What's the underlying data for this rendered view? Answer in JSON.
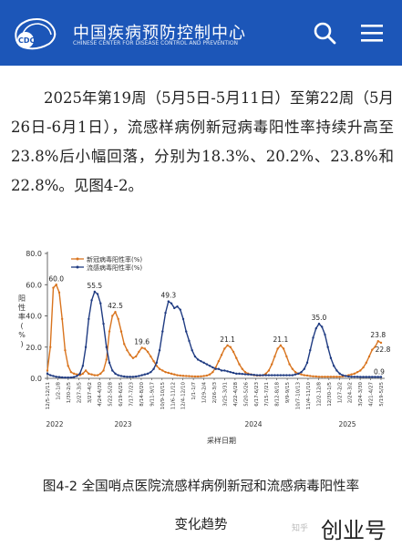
{
  "header": {
    "logo_text": "CDC",
    "org_name_cn": "中国疾病预防控制中心",
    "org_name_en": "CHINESE CENTER FOR DISEASE CONTROL AND PREVENTION",
    "search_icon": "search-icon",
    "menu_icon": "hamburger-menu-icon",
    "bg_color": "#1c56b8"
  },
  "article": {
    "paragraph": "2025年第19周（5月5日-5月11日）至第22周（5月26日-6月1日），流感样病例新冠病毒阳性率持续升高至23.8%后小幅回落，分别为18.3%、20.2%、23.8%和22.8%。见图4-2。"
  },
  "figure": {
    "caption_line1": "图4-2 全国哨点医院流感样病例新冠和流感病毒阳性率",
    "caption_line2": "变化趋势"
  },
  "watermark": {
    "text": "创业号",
    "faint": "知乎"
  },
  "chart_data": {
    "type": "line",
    "ylabel": "阳性率(%)",
    "xlabel": "采样日期",
    "ylim": [
      0,
      80
    ],
    "yticks": [
      "0.0",
      "20.0",
      "40.0",
      "60.0",
      "80.0"
    ],
    "legend_position": "top-center",
    "year_labels": [
      "2022",
      "2023",
      "2024",
      "2025"
    ],
    "xtick_labels": [
      "12/5-12/11",
      "1/2-1/8",
      "1/30-2/5",
      "2/27-3/5",
      "3/27-4/2",
      "4/24-4/30",
      "5/22-5/28",
      "6/19-6/25",
      "7/17-7/23",
      "8/14-8/20",
      "9/11-9/17",
      "10/9-10/15",
      "11/6-11/12",
      "12/4-12/10",
      "1/1-1/7",
      "1/29-2/4",
      "2/26-3/3",
      "3/25-3/31",
      "4/22-4/28",
      "5/20-5/26",
      "6/17-6/23",
      "7/15-7/21",
      "8/12-8/18",
      "9/9-9/15",
      "10/7-10/13",
      "11/4-11/10",
      "12/2-12/8",
      "12/30-1/5",
      "1/27-2/2",
      "2/24-3/2",
      "3/24-3/30",
      "4/21-4/27",
      "5/19-5/25"
    ],
    "series": [
      {
        "name": "新冠病毒阳性率(%)",
        "color": "#d9741e",
        "values": [
          5.0,
          20.0,
          58.0,
          60.0,
          55.0,
          38.0,
          18.0,
          8.0,
          4.0,
          3.0,
          2.5,
          2.0,
          3.0,
          5.0,
          3.0,
          2.5,
          2.0,
          2.0,
          3.0,
          5.0,
          12.0,
          30.0,
          40.0,
          42.5,
          38.0,
          30.0,
          22.0,
          18.0,
          15.0,
          13.0,
          14.0,
          17.0,
          19.6,
          19.0,
          17.0,
          14.0,
          11.0,
          8.0,
          6.0,
          5.0,
          4.0,
          3.5,
          3.0,
          2.5,
          2.0,
          1.8,
          1.6,
          1.5,
          1.4,
          1.3,
          1.2,
          1.2,
          1.3,
          1.5,
          1.8,
          2.5,
          4.0,
          7.0,
          11.0,
          15.0,
          19.0,
          21.1,
          20.0,
          17.0,
          13.0,
          9.0,
          6.0,
          4.0,
          3.0,
          2.5,
          2.0,
          1.8,
          1.8,
          2.0,
          3.0,
          5.0,
          9.0,
          14.0,
          19.0,
          21.1,
          19.0,
          14.0,
          9.0,
          6.0,
          4.0,
          3.0,
          2.5,
          2.0,
          1.8,
          1.5,
          1.3,
          1.2,
          1.0,
          1.0,
          1.0,
          1.0,
          1.0,
          1.0,
          1.0,
          1.0,
          1.2,
          1.5,
          2.0,
          2.5,
          3.0,
          4.0,
          5.0,
          7.0,
          10.0,
          14.0,
          18.3,
          20.2,
          23.8,
          22.8
        ]
      },
      {
        "name": "流感病毒阳性率(%)",
        "color": "#1f3b82",
        "values": [
          3.0,
          2.0,
          1.5,
          1.0,
          0.8,
          0.6,
          0.5,
          0.5,
          0.5,
          0.8,
          1.5,
          3.0,
          8.0,
          20.0,
          38.0,
          50.0,
          55.5,
          54.0,
          48.0,
          35.0,
          20.0,
          10.0,
          5.0,
          3.0,
          2.0,
          1.5,
          1.2,
          1.0,
          1.0,
          1.0,
          1.2,
          1.5,
          2.0,
          2.5,
          3.0,
          4.0,
          6.0,
          10.0,
          18.0,
          30.0,
          42.0,
          49.3,
          48.0,
          45.0,
          46.0,
          44.0,
          38.0,
          30.0,
          24.0,
          18.0,
          14.0,
          12.0,
          11.0,
          10.0,
          9.0,
          8.0,
          7.0,
          6.0,
          6.0,
          5.0,
          5.0,
          4.5,
          4.0,
          3.5,
          3.0,
          3.0,
          2.8,
          2.6,
          2.5,
          2.4,
          2.2,
          2.0,
          2.0,
          2.0,
          2.0,
          2.0,
          2.0,
          2.0,
          2.0,
          2.0,
          2.0,
          2.0,
          2.0,
          2.0,
          2.5,
          3.0,
          4.0,
          6.0,
          10.0,
          18.0,
          26.0,
          32.0,
          35.0,
          33.0,
          28.0,
          20.0,
          13.0,
          8.0,
          5.0,
          3.0,
          2.0,
          1.5,
          1.2,
          1.0,
          1.0,
          1.0,
          0.9,
          0.9,
          0.9,
          0.9,
          0.9,
          0.9,
          0.9,
          0.9
        ]
      }
    ],
    "peak_labels": [
      {
        "series": 0,
        "index": 3,
        "text": "60.0"
      },
      {
        "series": 1,
        "index": 16,
        "text": "55.5"
      },
      {
        "series": 0,
        "index": 23,
        "text": "42.5"
      },
      {
        "series": 0,
        "index": 32,
        "text": "19.6"
      },
      {
        "series": 1,
        "index": 41,
        "text": "49.3"
      },
      {
        "series": 0,
        "index": 61,
        "text": "21.1"
      },
      {
        "series": 0,
        "index": 79,
        "text": "21.1"
      },
      {
        "series": 1,
        "index": 92,
        "text": "35.0"
      },
      {
        "series": 0,
        "index": 112,
        "text": "23.8"
      },
      {
        "series": 0,
        "index": 113,
        "text": "22.8"
      },
      {
        "series": 1,
        "index": 113,
        "text": "0.9"
      }
    ]
  }
}
